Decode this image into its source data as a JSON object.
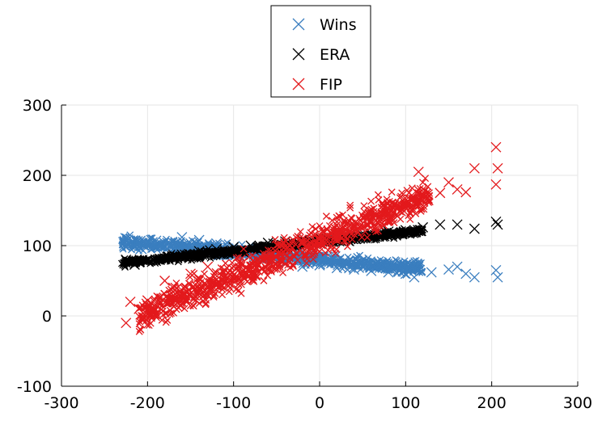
{
  "chart_data": {
    "type": "scatter",
    "title": "",
    "xlabel": "",
    "ylabel": "",
    "xlim": [
      -300,
      300
    ],
    "ylim": [
      -100,
      300
    ],
    "x_ticks": [
      "-300",
      "-200",
      "-100",
      "0",
      "100",
      "200",
      "300"
    ],
    "y_ticks": [
      "300",
      "200",
      "100",
      "0",
      "-100"
    ],
    "x_tick_values": [
      -300,
      -200,
      -100,
      0,
      100,
      200,
      300
    ],
    "y_tick_values": [
      300,
      200,
      100,
      0,
      -100
    ],
    "grid": true,
    "legend_position": "top-center",
    "marker": "x",
    "series": [
      {
        "name": "Wins",
        "color": "#3a7ebf",
        "trend": {
          "x": [
            -230,
            210
          ],
          "y": [
            105,
            58
          ]
        },
        "spread": {
          "x": [
            -230,
            120
          ],
          "jitter": 9
        },
        "points": [
          [
            -225,
            99
          ],
          [
            -210,
            104
          ],
          [
            -190,
            107
          ],
          [
            -160,
            112
          ],
          [
            -140,
            108
          ],
          [
            -120,
            103
          ],
          [
            -100,
            98
          ],
          [
            -80,
            90
          ],
          [
            -60,
            82
          ],
          [
            -40,
            75
          ],
          [
            -20,
            70
          ],
          [
            0,
            72
          ],
          [
            20,
            68
          ],
          [
            40,
            66
          ],
          [
            60,
            64
          ],
          [
            80,
            62
          ],
          [
            100,
            60
          ],
          [
            110,
            55
          ],
          [
            130,
            62
          ],
          [
            150,
            66
          ],
          [
            160,
            70
          ],
          [
            170,
            60
          ],
          [
            180,
            55
          ],
          [
            205,
            65
          ],
          [
            207,
            55
          ]
        ]
      },
      {
        "name": "ERA",
        "color": "#000000",
        "trend": {
          "x": [
            -230,
            210
          ],
          "y": [
            75,
            133
          ]
        },
        "spread": {
          "x": [
            -230,
            120
          ],
          "jitter": 5
        },
        "points": [
          [
            -225,
            80
          ],
          [
            -215,
            73
          ],
          [
            -200,
            78
          ],
          [
            -180,
            82
          ],
          [
            -160,
            87
          ],
          [
            -140,
            92
          ],
          [
            -120,
            95
          ],
          [
            -100,
            98
          ],
          [
            -80,
            100
          ],
          [
            -60,
            104
          ],
          [
            -40,
            106
          ],
          [
            -20,
            108
          ],
          [
            0,
            110
          ],
          [
            20,
            112
          ],
          [
            40,
            115
          ],
          [
            60,
            117
          ],
          [
            80,
            120
          ],
          [
            100,
            122
          ],
          [
            120,
            126
          ],
          [
            140,
            130
          ],
          [
            160,
            130
          ],
          [
            180,
            124
          ],
          [
            205,
            134
          ],
          [
            207,
            130
          ]
        ]
      },
      {
        "name": "FIP",
        "color": "#e3191c",
        "trend": {
          "x": [
            -230,
            210
          ],
          "y": [
            -10,
            215
          ]
        },
        "spread": {
          "x": [
            -210,
            130
          ],
          "jitter": 22
        },
        "points": [
          [
            -225,
            -10
          ],
          [
            -220,
            20
          ],
          [
            -210,
            10
          ],
          [
            -200,
            22
          ],
          [
            -190,
            15
          ],
          [
            -180,
            50
          ],
          [
            -170,
            40
          ],
          [
            -160,
            30
          ],
          [
            -150,
            60
          ],
          [
            -140,
            45
          ],
          [
            -130,
            70
          ],
          [
            -110,
            65
          ],
          [
            -90,
            75
          ],
          [
            -60,
            85
          ],
          [
            -40,
            95
          ],
          [
            -20,
            105
          ],
          [
            0,
            110
          ],
          [
            20,
            115
          ],
          [
            40,
            125
          ],
          [
            60,
            135
          ],
          [
            80,
            145
          ],
          [
            100,
            155
          ],
          [
            115,
            205
          ],
          [
            120,
            165
          ],
          [
            140,
            175
          ],
          [
            150,
            190
          ],
          [
            160,
            180
          ],
          [
            170,
            176
          ],
          [
            180,
            210
          ],
          [
            205,
            240
          ],
          [
            207,
            210
          ],
          [
            205,
            187
          ]
        ]
      }
    ]
  }
}
